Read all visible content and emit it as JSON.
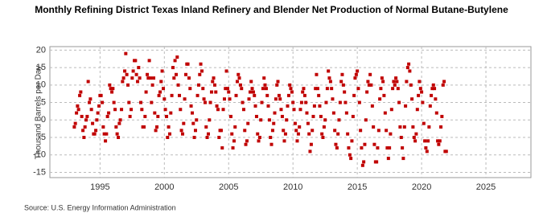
{
  "chart_data": {
    "type": "scatter",
    "title": "Monthly Refining District Texas Inland Refinery and Blender Net Production of Normal Butane-Butylene",
    "y_label": "Thousand Barrels per Day",
    "source": "Source: U.S. Energy Information Administration",
    "color": "#c00000",
    "grid": true,
    "xlim": [
      1991.1,
      2028.5
    ],
    "xticks": [
      1995,
      2000,
      2005,
      2010,
      2015,
      2020,
      2025
    ],
    "ylim": [
      -16.5,
      21
    ],
    "yticks": [
      -15,
      -10,
      -5,
      0,
      5,
      10,
      15,
      20
    ],
    "x": [
      1993.0,
      1993.08,
      1993.17,
      1993.25,
      1993.33,
      1993.42,
      1993.5,
      1993.58,
      1993.67,
      1993.75,
      1993.83,
      1993.92,
      1994.0,
      1994.08,
      1994.17,
      1994.25,
      1994.33,
      1994.42,
      1994.5,
      1994.58,
      1994.67,
      1994.75,
      1994.83,
      1994.92,
      1995.0,
      1995.08,
      1995.17,
      1995.25,
      1995.33,
      1995.42,
      1995.5,
      1995.58,
      1995.67,
      1995.75,
      1995.83,
      1995.92,
      1996.0,
      1996.08,
      1996.17,
      1996.25,
      1996.33,
      1996.42,
      1996.5,
      1996.58,
      1996.67,
      1996.75,
      1996.83,
      1996.92,
      1997.0,
      1997.08,
      1997.17,
      1997.25,
      1997.33,
      1997.42,
      1997.5,
      1997.58,
      1997.67,
      1997.75,
      1997.83,
      1997.92,
      1998.0,
      1998.08,
      1998.17,
      1998.25,
      1998.33,
      1998.42,
      1998.5,
      1998.58,
      1998.67,
      1998.75,
      1998.83,
      1998.92,
      1999.0,
      1999.08,
      1999.17,
      1999.25,
      1999.33,
      1999.42,
      1999.5,
      1999.58,
      1999.67,
      1999.75,
      1999.83,
      1999.92,
      2000.0,
      2000.08,
      2000.17,
      2000.25,
      2000.33,
      2000.42,
      2000.5,
      2000.58,
      2000.67,
      2000.75,
      2000.83,
      2000.92,
      2001.0,
      2001.08,
      2001.17,
      2001.25,
      2001.33,
      2001.42,
      2001.5,
      2001.58,
      2001.67,
      2001.75,
      2001.83,
      2001.92,
      2002.0,
      2002.08,
      2002.17,
      2002.25,
      2002.33,
      2002.42,
      2002.5,
      2002.58,
      2002.67,
      2002.75,
      2002.83,
      2002.92,
      2003.0,
      2003.08,
      2003.17,
      2003.25,
      2003.33,
      2003.42,
      2003.5,
      2003.58,
      2003.67,
      2003.75,
      2003.83,
      2003.92,
      2004.0,
      2004.08,
      2004.17,
      2004.25,
      2004.33,
      2004.42,
      2004.5,
      2004.58,
      2004.67,
      2004.75,
      2004.83,
      2004.92,
      2005.0,
      2005.08,
      2005.17,
      2005.25,
      2005.33,
      2005.42,
      2005.5,
      2005.58,
      2005.67,
      2005.75,
      2005.83,
      2005.92,
      2006.0,
      2006.08,
      2006.17,
      2006.25,
      2006.33,
      2006.42,
      2006.5,
      2006.58,
      2006.67,
      2006.75,
      2006.83,
      2006.92,
      2007.0,
      2007.08,
      2007.17,
      2007.25,
      2007.33,
      2007.42,
      2007.5,
      2007.58,
      2007.67,
      2007.75,
      2007.83,
      2007.92,
      2008.0,
      2008.08,
      2008.17,
      2008.25,
      2008.33,
      2008.42,
      2008.5,
      2008.58,
      2008.67,
      2008.75,
      2008.83,
      2008.92,
      2009.0,
      2009.08,
      2009.17,
      2009.25,
      2009.33,
      2009.42,
      2009.5,
      2009.58,
      2009.67,
      2009.75,
      2009.83,
      2009.92,
      2010.0,
      2010.08,
      2010.17,
      2010.25,
      2010.33,
      2010.42,
      2010.5,
      2010.58,
      2010.67,
      2010.75,
      2010.83,
      2010.92,
      2011.0,
      2011.08,
      2011.17,
      2011.25,
      2011.33,
      2011.42,
      2011.5,
      2011.58,
      2011.67,
      2011.75,
      2011.83,
      2011.92,
      2012.0,
      2012.08,
      2012.17,
      2012.25,
      2012.33,
      2012.42,
      2012.5,
      2012.58,
      2012.67,
      2012.75,
      2012.83,
      2012.92,
      2013.0,
      2013.08,
      2013.17,
      2013.25,
      2013.33,
      2013.42,
      2013.5,
      2013.58,
      2013.67,
      2013.75,
      2013.83,
      2013.92,
      2014.0,
      2014.08,
      2014.17,
      2014.25,
      2014.33,
      2014.42,
      2014.5,
      2014.58,
      2014.67,
      2014.75,
      2014.83,
      2014.92,
      2015.0,
      2015.08,
      2015.17,
      2015.25,
      2015.33,
      2015.42,
      2015.5,
      2015.58,
      2015.67,
      2015.75,
      2015.83,
      2015.92,
      2016.0,
      2016.08,
      2016.17,
      2016.25,
      2016.33,
      2016.42,
      2016.5,
      2016.58,
      2016.67,
      2016.75,
      2016.83,
      2016.92,
      2017.0,
      2017.08,
      2017.17,
      2017.25,
      2017.33,
      2017.42,
      2017.5,
      2017.58,
      2017.67,
      2017.75,
      2017.83,
      2017.92,
      2018.0,
      2018.08,
      2018.17,
      2018.25,
      2018.33,
      2018.42,
      2018.5,
      2018.58,
      2018.67,
      2018.75,
      2018.83,
      2018.92,
      2019.0,
      2019.08,
      2019.17,
      2019.25,
      2019.33,
      2019.42,
      2019.5,
      2019.58,
      2019.67,
      2019.75,
      2019.83,
      2019.92,
      2020.0,
      2020.08,
      2020.17,
      2020.25,
      2020.33,
      2020.42,
      2020.5,
      2020.58,
      2020.67,
      2020.75,
      2020.83,
      2020.92,
      2021.0,
      2021.08,
      2021.17,
      2021.25,
      2021.33,
      2021.42,
      2021.5,
      2021.58,
      2021.67,
      2021.75,
      2021.83,
      2021.92
    ],
    "values": [
      -2,
      -1,
      2,
      4,
      3,
      7,
      8,
      1,
      -3,
      -5,
      -2,
      0,
      1,
      11,
      5,
      6,
      3,
      -1,
      -4,
      -4,
      -3,
      0,
      2,
      4,
      7,
      7,
      5,
      -2,
      -4,
      -6,
      -4,
      1,
      2,
      10,
      9,
      8,
      9,
      5,
      3,
      -2,
      -4,
      -5,
      -1,
      0,
      3,
      11,
      12,
      14,
      19,
      13,
      10,
      5,
      1,
      3,
      12,
      14,
      17,
      17,
      13,
      11,
      15,
      12,
      5,
      3,
      -2,
      -2,
      1,
      8,
      13,
      12,
      17,
      12,
      5,
      10,
      12,
      2,
      -3,
      -2,
      1,
      7,
      8,
      11,
      14,
      9,
      6,
      3,
      1,
      -5,
      -2,
      -4,
      2,
      7,
      15,
      12,
      17,
      13,
      18,
      10,
      7,
      3,
      -3,
      -4,
      -1,
      6,
      13,
      16,
      16,
      12,
      9,
      4,
      2,
      -1,
      -5,
      -3,
      0,
      7,
      10,
      13,
      16,
      14,
      9,
      6,
      5,
      -2,
      -5,
      -4,
      0,
      5,
      8,
      11,
      12,
      10,
      8,
      4,
      3,
      -5,
      -3,
      -3,
      -8,
      3,
      6,
      9,
      14,
      9,
      8,
      6,
      1,
      -4,
      -8,
      -6,
      -2,
      7,
      11,
      13,
      12,
      10,
      9,
      5,
      3,
      -3,
      -7,
      -6,
      -1,
      6,
      8,
      11,
      9,
      8,
      7,
      4,
      1,
      -4,
      -6,
      -5,
      0,
      5,
      9,
      12,
      10,
      9,
      7,
      4,
      0,
      -5,
      -7,
      -3,
      -1,
      2,
      6,
      10,
      11,
      7,
      6,
      3,
      1,
      -3,
      -6,
      -4,
      0,
      4,
      7,
      10,
      9,
      8,
      5,
      3,
      -1,
      -3,
      -6,
      -4,
      -2,
      3,
      5,
      8,
      9,
      7,
      5,
      2,
      -1,
      -4,
      -9,
      -7,
      -3,
      1,
      4,
      9,
      13,
      9,
      7,
      4,
      1,
      -4,
      -5,
      -2,
      0,
      5,
      9,
      14,
      12,
      11,
      9,
      6,
      2,
      -3,
      -7,
      -8,
      -4,
      0,
      5,
      11,
      13,
      10,
      8,
      5,
      2,
      -4,
      -8,
      -10,
      -11,
      -6,
      1,
      7,
      12,
      13,
      14,
      9,
      5,
      -3,
      -8,
      -13,
      -12,
      -7,
      0,
      8,
      11,
      10,
      13,
      10,
      4,
      -2,
      -7,
      -12,
      -12,
      -8,
      -3,
      6,
      9,
      12,
      11,
      7,
      2,
      -3,
      -8,
      -11,
      -8,
      -4,
      3,
      9,
      11,
      10,
      12,
      11,
      9,
      5,
      -2,
      -5,
      -8,
      -11,
      -2,
      4,
      11,
      15,
      16,
      14,
      10,
      6,
      -2,
      -5,
      -6,
      -4,
      3,
      7,
      11,
      9,
      8,
      5,
      -1,
      -6,
      -8,
      -9,
      -6,
      -2,
      4,
      7,
      9,
      10,
      9,
      6,
      2,
      -6,
      -7,
      -6,
      -2,
      1,
      10,
      11,
      -9,
      -9
    ]
  }
}
